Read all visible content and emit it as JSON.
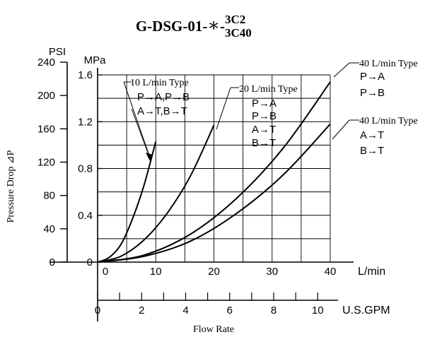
{
  "chart_data": {
    "type": "line",
    "title": {
      "base": "G-DSG-01-",
      "star": "∗",
      "dash": "-",
      "variant_top": "3C2",
      "variant_bottom": "3C40"
    },
    "xlabel": "Flow Rate",
    "ylabel": "Pressure Drop ⊿P",
    "x_axes": {
      "lmin": {
        "unit": "L/min",
        "range": [
          0,
          40
        ],
        "ticks": [
          "0",
          "10",
          "20",
          "30",
          "40"
        ]
      },
      "gpm": {
        "unit": "U.S.GPM",
        "range": [
          0,
          10.57
        ],
        "ticks": [
          "0",
          "2",
          "4",
          "6",
          "8",
          "10"
        ]
      }
    },
    "y_axes": {
      "psi": {
        "unit": "PSI",
        "range": [
          0,
          240
        ],
        "ticks": [
          "0",
          "40",
          "80",
          "120",
          "160",
          "200",
          "240"
        ]
      },
      "mpa": {
        "unit": "MPa",
        "range": [
          0,
          1.6
        ],
        "ticks": [
          "0",
          "0.4",
          "0.8",
          "1.2",
          "1.6"
        ]
      }
    },
    "grid": true,
    "series": [
      {
        "name": "10 L/min Type",
        "paths": [
          "P→A,P→B",
          "A→T,B→T"
        ],
        "x_lmin": [
          0,
          2,
          4,
          6,
          8,
          10
        ],
        "y_mpa": [
          0,
          0.04,
          0.15,
          0.37,
          0.66,
          1.03
        ]
      },
      {
        "name": "20 L/min Type",
        "paths": [
          "P→A",
          "P→B",
          "A→T",
          "B→T"
        ],
        "x_lmin": [
          0,
          4,
          8,
          12,
          16,
          20
        ],
        "y_mpa": [
          0,
          0.05,
          0.19,
          0.42,
          0.74,
          1.17
        ]
      },
      {
        "name": "40 L/min Type",
        "paths": [
          "P→A",
          "P→B"
        ],
        "x_lmin": [
          0,
          8,
          16,
          24,
          32,
          40
        ],
        "y_mpa": [
          0,
          0.06,
          0.24,
          0.55,
          0.98,
          1.54
        ]
      },
      {
        "name": "40 L/min Type",
        "paths": [
          "A→T",
          "B→T"
        ],
        "x_lmin": [
          0,
          8,
          16,
          24,
          32,
          40
        ],
        "y_mpa": [
          0,
          0.05,
          0.18,
          0.42,
          0.75,
          1.18
        ]
      }
    ]
  }
}
